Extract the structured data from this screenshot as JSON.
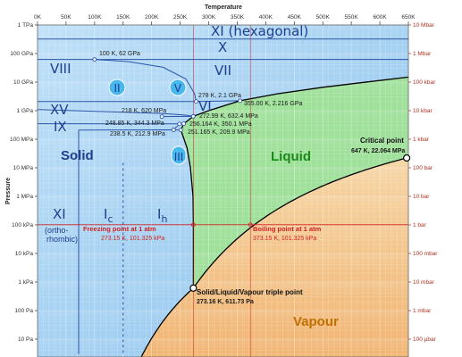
{
  "chart_data": {
    "type": "phase-diagram",
    "x_axis": {
      "title": "Temperature",
      "ticks": [
        "0K",
        "50K",
        "100K",
        "150K",
        "200K",
        "250K",
        "300K",
        "350K",
        "400K",
        "450K",
        "500K",
        "550K",
        "600K",
        "650K"
      ],
      "range": [
        0,
        650
      ]
    },
    "y_axis_left": {
      "title": "Pressure",
      "scale": "log",
      "ticks": [
        "1 TPa",
        "100 GPa",
        "10 GPa",
        "1 GPa",
        "100 MPa",
        "10 MPa",
        "1 MPa",
        "100 kPa",
        "10 kPa",
        "1 kPa",
        "100 Pa",
        "10 Pa"
      ],
      "range_pa": [
        3,
        1000000000000
      ]
    },
    "y_axis_right": {
      "ticks": [
        "10 Mbar",
        "1 Mbar",
        "100 kbar",
        "10 kbar",
        "1 kbar",
        "100 bar",
        "10 bar",
        "1 bar",
        "100 mbar",
        "10 mbar",
        "1 mbar",
        "100 μbar"
      ]
    },
    "regions": [
      {
        "label": "Solid",
        "color": "#1e3f8f"
      },
      {
        "label": "Liquid",
        "color": "#1a8a1a"
      },
      {
        "label": "Vapour",
        "color": "#c07000"
      }
    ],
    "phases": [
      "XI (hexagonal)",
      "X",
      "VIII",
      "VII",
      "XV",
      "IX",
      "XI",
      "(ortho-",
      "rhombic)",
      "II",
      "V",
      "VI",
      "III"
    ],
    "phase_ic": {
      "base": "I",
      "sub": "c"
    },
    "phase_ih": {
      "base": "I",
      "sub": "h"
    },
    "points": [
      {
        "label": "100 K, 62 GPa",
        "t": 100,
        "p": 62000000000
      },
      {
        "label": "278 K, 2.1 GPa",
        "t": 278,
        "p": 2100000000
      },
      {
        "label": "355.00 K, 2.216 GPa",
        "t": 355,
        "p": 2216000000
      },
      {
        "label": "218 K, 620 MPa",
        "t": 218,
        "p": 620000000
      },
      {
        "label": "272.99 K, 632.4 MPa",
        "t": 272.99,
        "p": 632400000
      },
      {
        "label": "248.85 K, 344.3 MPa",
        "t": 248.85,
        "p": 344300000
      },
      {
        "label": "256.164 K, 350.1 MPa",
        "t": 256.164,
        "p": 350100000
      },
      {
        "label": "238.5 K, 212.9 MPa",
        "t": 238.5,
        "p": 212900000
      },
      {
        "label": "251.165 K, 209.9 MPa",
        "t": 251.165,
        "p": 209900000
      },
      {
        "label": "Critical point",
        "t": 647,
        "p": 22064000
      },
      {
        "label": "Solid/Liquid/Vapour triple point",
        "t": 273.16,
        "p": 611.73
      },
      {
        "label": "Freezing point at 1 atm",
        "t": 273.15,
        "p": 101325
      },
      {
        "label": "Boiling point at 1 atm",
        "t": 373.15,
        "p": 101325
      }
    ],
    "annotations": {
      "critical_title": "Critical point",
      "critical_value": "647 K, 22.064 MPa",
      "triple_title": "Solid/Liquid/Vapour triple point",
      "triple_value": "273.16 K, 611.73 Pa",
      "freezing_title": "Freezing point at 1 atm",
      "freezing_value": "273.15 K, 101.325 kPa",
      "boiling_title": "Boiling point at 1 atm",
      "boiling_value": "373.15 K, 101.325 kPa"
    },
    "grid": true,
    "colors": {
      "solid": "#a9d3f2",
      "liquid": "#9fe09a",
      "vapour": "#f4c38a",
      "phase_line": "#2a55a8",
      "boundary": "#000000",
      "atm_line": "#d02020"
    }
  }
}
